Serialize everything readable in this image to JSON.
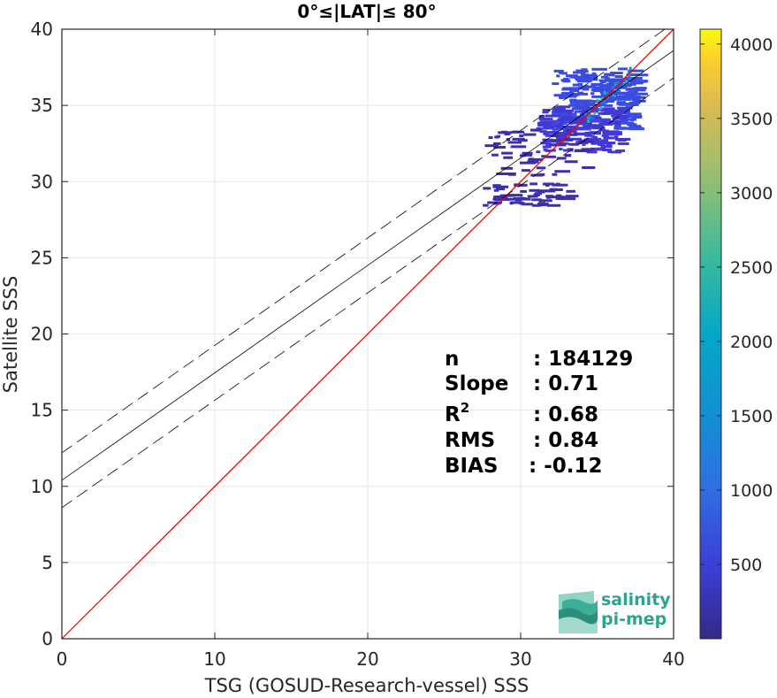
{
  "chart_data": {
    "type": "heatmap",
    "title": "0°≤|LAT|≤ 80°",
    "xlabel": "TSG (GOSUD-Research-vessel) SSS",
    "ylabel": "Satellite SSS",
    "xlim": [
      0,
      40
    ],
    "ylim": [
      0,
      40
    ],
    "xticks": [
      "0",
      "10",
      "20",
      "30",
      "40"
    ],
    "yticks": [
      "0",
      "5",
      "10",
      "15",
      "20",
      "25",
      "30",
      "35",
      "40"
    ],
    "grid": true,
    "colorbar": {
      "range": [
        0,
        4100
      ],
      "ticks": [
        "500",
        "1000",
        "1500",
        "2000",
        "2500",
        "3000",
        "3500",
        "4000"
      ],
      "colormap": "parula"
    },
    "lines": [
      {
        "name": "1:1",
        "color": "#ff0000",
        "style": "solid",
        "x": [
          0,
          40
        ],
        "y": [
          0,
          40
        ]
      },
      {
        "name": "fit",
        "color": "#000000",
        "style": "solid",
        "x": [
          0,
          40
        ],
        "y": [
          10.4,
          38.6
        ]
      },
      {
        "name": "fit+2σ",
        "color": "#000000",
        "style": "dashed",
        "x": [
          0,
          40
        ],
        "y": [
          12.2,
          40.4
        ]
      },
      {
        "name": "fit-2σ",
        "color": "#000000",
        "style": "dashed",
        "x": [
          0,
          40
        ],
        "y": [
          8.6,
          36.8
        ]
      }
    ],
    "density_clusters": [
      {
        "x": [
          32.0,
          37.5
        ],
        "y": [
          33.5,
          37.5
        ],
        "density": "high"
      },
      {
        "x": [
          31.0,
          36.5
        ],
        "y": [
          32.0,
          35.0
        ],
        "density": "medium"
      },
      {
        "x": [
          27.5,
          34.0
        ],
        "y": [
          30.5,
          33.5
        ],
        "density": "low"
      },
      {
        "x": [
          27.5,
          33.0
        ],
        "y": [
          28.5,
          30.0
        ],
        "density": "low"
      }
    ],
    "stats": [
      {
        "label": "n",
        "value": ": 184129"
      },
      {
        "label": "Slope",
        "value": ": 0.71"
      },
      {
        "label": "R²",
        "value": ": 0.68"
      },
      {
        "label": "RMS",
        "value": ": 0.84"
      },
      {
        "label": "BIAS",
        "value": ": -0.12"
      }
    ]
  },
  "logo": {
    "line1": "salinity",
    "line2": "pi-mep"
  },
  "colors": {
    "one_to_one": "#ff0000",
    "fit": "#000000",
    "grid": "#e6e6e6",
    "accent": "#2aa58f"
  }
}
